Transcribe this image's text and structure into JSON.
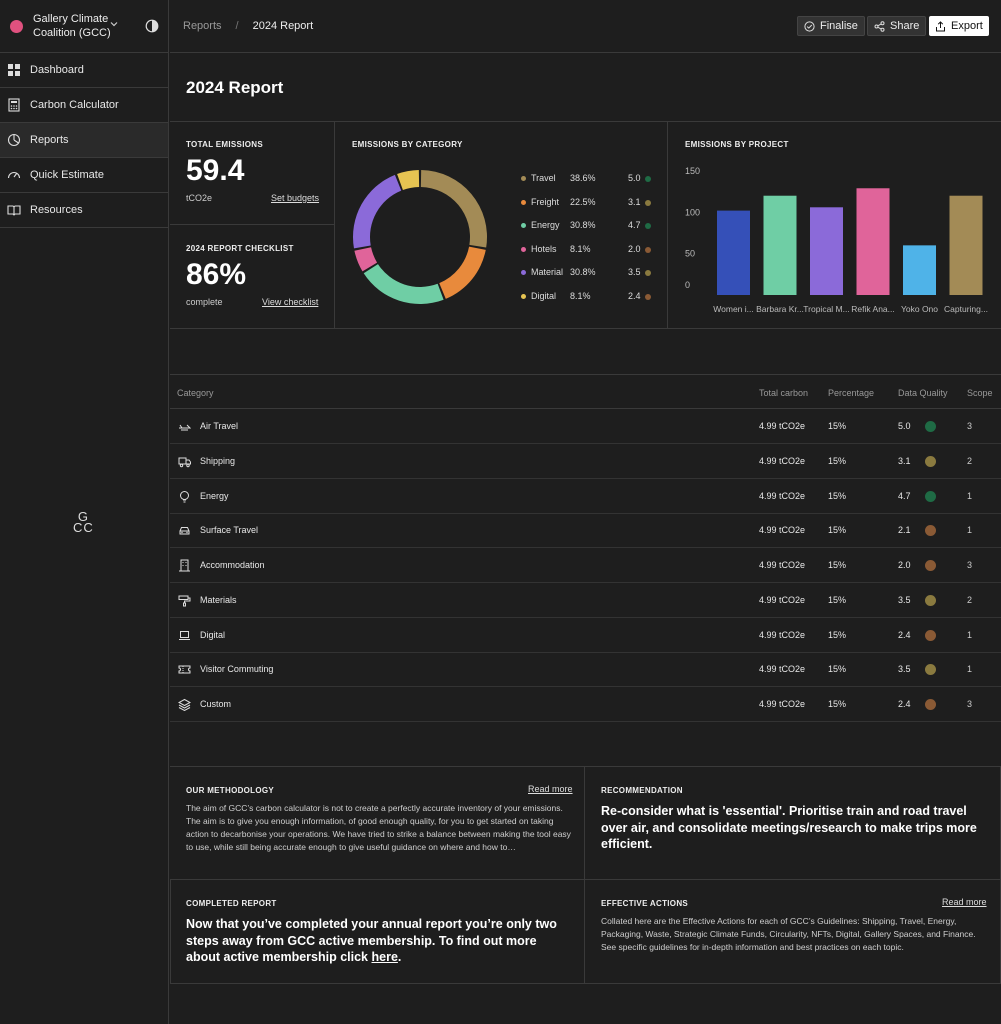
{
  "org": {
    "name": "Gallery Climate Coalition (GCC)",
    "color": "#e0517f"
  },
  "nav": [
    {
      "label": "Dashboard",
      "icon": "grid-icon"
    },
    {
      "label": "Carbon Calculator",
      "icon": "calculator-icon"
    },
    {
      "label": "Reports",
      "icon": "pie-chart-icon"
    },
    {
      "label": "Quick Estimate",
      "icon": "gauge-icon"
    },
    {
      "label": "Resources",
      "icon": "book-icon"
    }
  ],
  "logo": {
    "line1": "G",
    "line2": "CC"
  },
  "breadcrumb": {
    "parent": "Reports",
    "sep": "/",
    "current": "2024 Report"
  },
  "actions": {
    "finalise": "Finalise",
    "share": "Share",
    "export": "Export"
  },
  "page_title": "2024 Report",
  "total": {
    "label": "TOTAL EMISSIONS",
    "value": "59.4",
    "unit": "tCO2e",
    "link": "Set budgets"
  },
  "checklist": {
    "label": "2024 REPORT CHECKLIST",
    "value": "86%",
    "sub": "complete",
    "link": "View checklist"
  },
  "category_chart": {
    "label": "EMISSIONS BY CATEGORY",
    "items": [
      {
        "name": "Travel",
        "pct": "38.6%",
        "q": "5.0",
        "color": "#a38b56",
        "qcolor": "#1f6b45"
      },
      {
        "name": "Freight",
        "pct": "22.5%",
        "q": "3.1",
        "color": "#e88a3c",
        "qcolor": "#8a7a3f"
      },
      {
        "name": "Energy",
        "pct": "30.8%",
        "q": "4.7",
        "color": "#6fcea5",
        "qcolor": "#1f6b45"
      },
      {
        "name": "Hotels",
        "pct": "8.1%",
        "q": "2.0",
        "color": "#e0649a",
        "qcolor": "#8a5a35"
      },
      {
        "name": "Material",
        "pct": "30.8%",
        "q": "3.5",
        "color": "#8b6ad9",
        "qcolor": "#8a7a3f"
      },
      {
        "name": "Digital",
        "pct": "8.1%",
        "q": "2.4",
        "color": "#e6c452",
        "qcolor": "#8a5a35"
      }
    ]
  },
  "chart_data": {
    "type": "bar",
    "title": "EMISSIONS BY PROJECT",
    "categories": [
      "Women i...",
      "Barbara Kr...",
      "Tropical M...",
      "Refik Ana...",
      "Yoko Ono",
      "Capturing..."
    ],
    "values": [
      102,
      120,
      106,
      129,
      60,
      120
    ],
    "colors": [
      "#3550b8",
      "#6fcea5",
      "#8b6ad9",
      "#e0649a",
      "#4fb3e8",
      "#a38b56"
    ],
    "yticks": [
      0,
      50,
      100,
      150
    ],
    "ylim": [
      0,
      150
    ],
    "grid": false
  },
  "table": {
    "headers": {
      "category": "Category",
      "total": "Total carbon",
      "pct": "Percentage",
      "dq": "Data Quality",
      "scope": "Scope"
    },
    "rows": [
      {
        "name": "Air Travel",
        "icon": "plane-icon",
        "total": "4.99 tCO2e",
        "pct": "15%",
        "dq": "5.0",
        "dqcolor": "#1f6b45",
        "scope": "3"
      },
      {
        "name": "Shipping",
        "icon": "truck-icon",
        "total": "4.99 tCO2e",
        "pct": "15%",
        "dq": "3.1",
        "dqcolor": "#8a7a3f",
        "scope": "2"
      },
      {
        "name": "Energy",
        "icon": "bulb-icon",
        "total": "4.99 tCO2e",
        "pct": "15%",
        "dq": "4.7",
        "dqcolor": "#1f6b45",
        "scope": "1"
      },
      {
        "name": "Surface Travel",
        "icon": "car-icon",
        "total": "4.99 tCO2e",
        "pct": "15%",
        "dq": "2.1",
        "dqcolor": "#8a5a35",
        "scope": "1"
      },
      {
        "name": "Accommodation",
        "icon": "building-icon",
        "total": "4.99 tCO2e",
        "pct": "15%",
        "dq": "2.0",
        "dqcolor": "#8a5a35",
        "scope": "3"
      },
      {
        "name": "Materials",
        "icon": "paint-roller-icon",
        "total": "4.99 tCO2e",
        "pct": "15%",
        "dq": "3.5",
        "dqcolor": "#8a7a3f",
        "scope": "2"
      },
      {
        "name": "Digital",
        "icon": "laptop-icon",
        "total": "4.99 tCO2e",
        "pct": "15%",
        "dq": "2.4",
        "dqcolor": "#8a5a35",
        "scope": "1"
      },
      {
        "name": "Visitor Commuting",
        "icon": "ticket-icon",
        "total": "4.99 tCO2e",
        "pct": "15%",
        "dq": "3.5",
        "dqcolor": "#8a7a3f",
        "scope": "1"
      },
      {
        "name": "Custom",
        "icon": "layers-icon",
        "total": "4.99 tCO2e",
        "pct": "15%",
        "dq": "2.4",
        "dqcolor": "#8a5a35",
        "scope": "3"
      }
    ]
  },
  "methodology": {
    "label": "OUR METHODOLOGY",
    "link": "Read more",
    "text": "The aim of GCC’s carbon calculator is not to create a perfectly accurate inventory of your emissions. The aim is to give you enough information, of good enough quality, for you to get started on taking action to decarbonise your operations. We have tried to strike a balance between making the tool easy to use, while still being accurate enough to give useful guidance on where and how to…"
  },
  "recommendation": {
    "label": "RECOMMENDATION",
    "text": "Re-consider what is 'essential'. Prioritise train and road travel over air, and consolidate meetings/research to make trips more efficient."
  },
  "completed": {
    "label": "COMPLETED REPORT",
    "text": "Now that you’ve completed your annual report you’re only two steps away from GCC active membership. To find out more about active membership click ",
    "link": "here",
    "end": "."
  },
  "effective": {
    "label": "EFFECTIVE ACTIONS",
    "link": "Read more",
    "text": "Collated here are the Effective Actions for each of GCC’s Guidelines: Shipping, Travel, Energy, Packaging, Waste, Strategic Climate Funds, Circularity, NFTs, Digital, Gallery Spaces, and Finance. See specific guidelines for in-depth information and best practices on each topic."
  }
}
